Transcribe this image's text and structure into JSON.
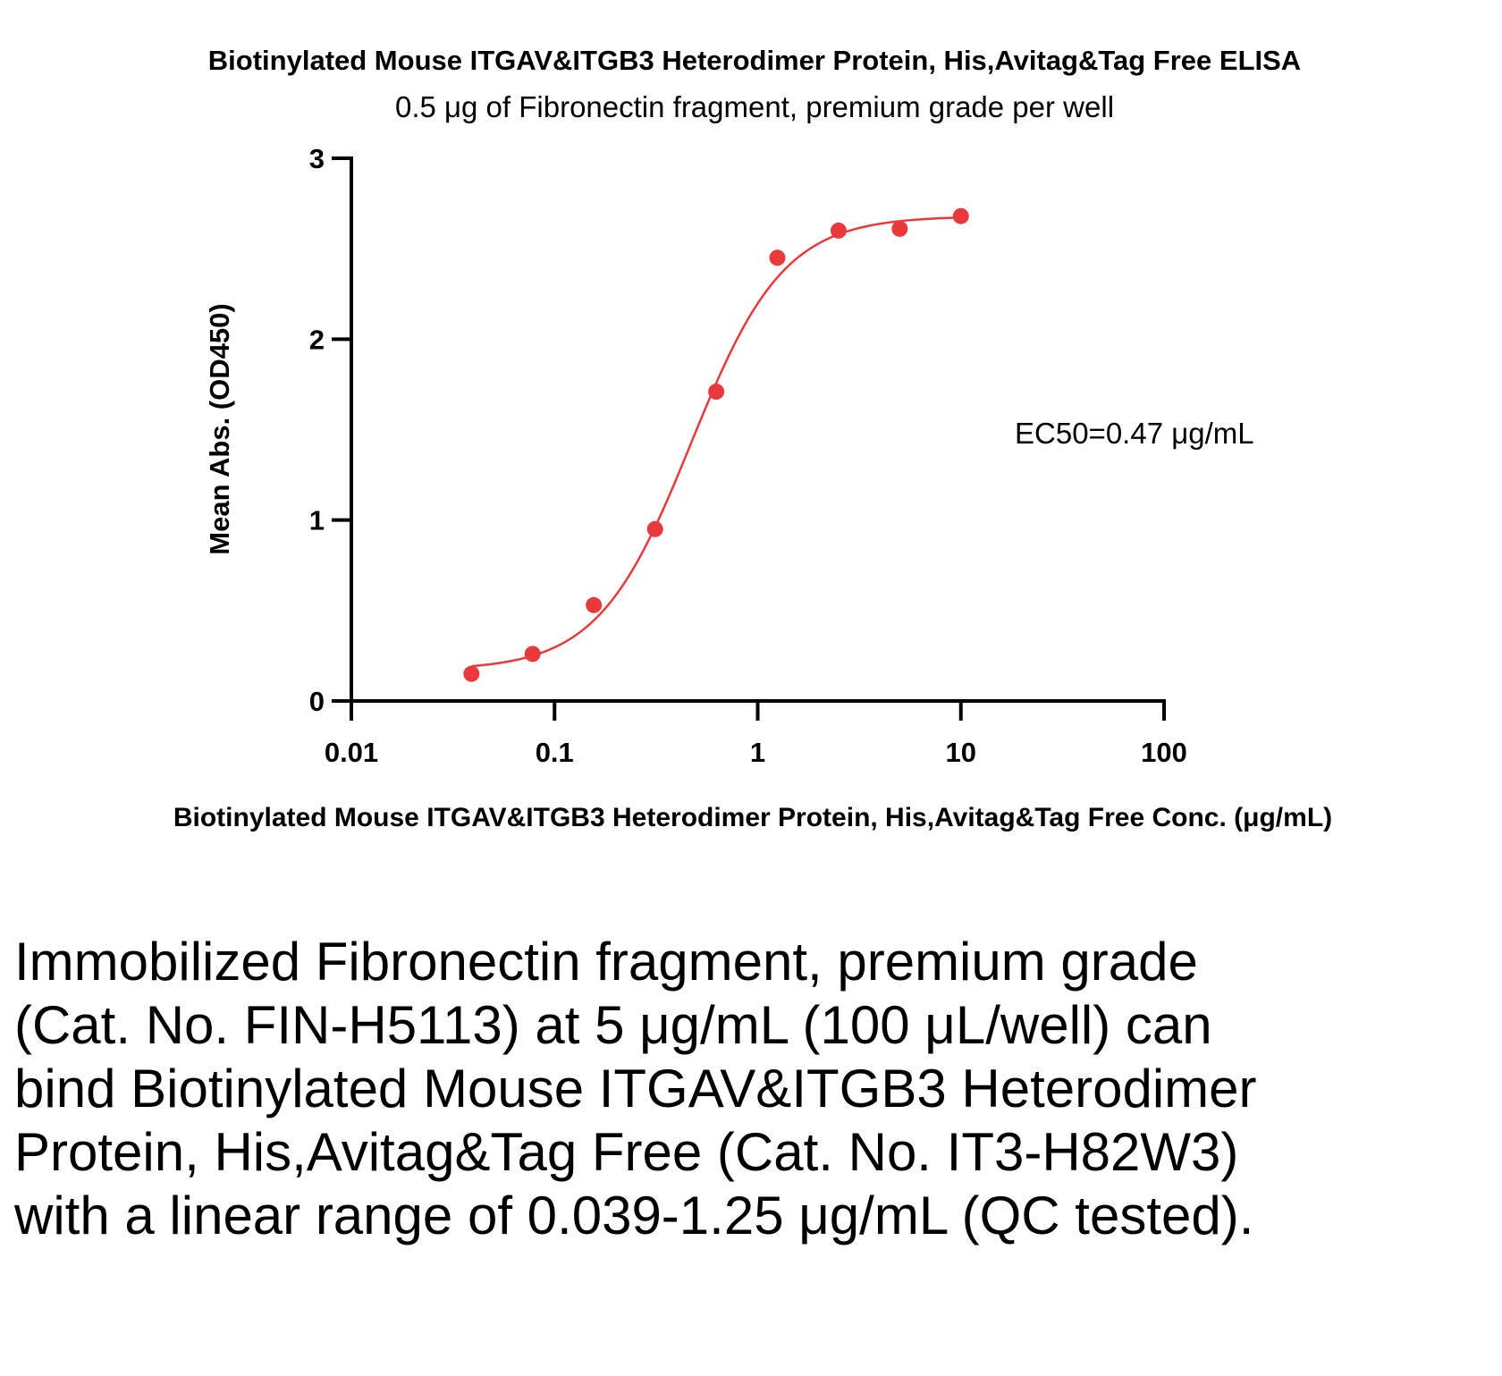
{
  "chart_data": {
    "type": "scatter",
    "title": "Biotinylated Mouse ITGAV&ITGB3 Heterodimer Protein, His,Avitag&Tag Free ELISA",
    "subtitle": "0.5 μg of Fibronectin fragment, premium grade per well",
    "xlabel": "Biotinylated Mouse ITGAV&ITGB3 Heterodimer Protein, His,Avitag&Tag Free Conc. (μg/mL)",
    "ylabel": "Mean Abs. (OD450)",
    "x_scale": "log",
    "xlim": [
      0.01,
      100
    ],
    "ylim": [
      0,
      3
    ],
    "x_ticks": [
      0.01,
      0.1,
      1,
      10,
      100
    ],
    "x_tick_labels": [
      "0.01",
      "0.1",
      "1",
      "10",
      "100"
    ],
    "y_ticks": [
      0,
      1,
      2,
      3
    ],
    "y_tick_labels": [
      "0",
      "1",
      "2",
      "3"
    ],
    "grid": false,
    "annotation": "EC50=0.47 μg/mL",
    "series": [
      {
        "x": [
          0.039,
          0.078,
          0.156,
          0.3125,
          0.625,
          1.25,
          2.5,
          5,
          10
        ],
        "y": [
          0.15,
          0.26,
          0.53,
          0.95,
          1.71,
          2.45,
          2.6,
          2.61,
          2.68
        ],
        "color": "#e8393c"
      }
    ],
    "fit_curve": {
      "model": "4PL",
      "bottom": 0.17,
      "top": 2.68,
      "ec50": 0.47,
      "hill": 1.9,
      "x_range": [
        0.039,
        10
      ],
      "color": "#e8393c"
    }
  },
  "caption": "Immobilized Fibronectin fragment, premium grade (Cat. No. FIN-H5113) at 5 μg/mL (100 μL/well) can bind Biotinylated Mouse ITGAV&ITGB3 Heterodimer Protein, His,Avitag&Tag Free (Cat. No. IT3-H82W3) with a linear range of 0.039-1.25 μg/mL (QC tested)."
}
